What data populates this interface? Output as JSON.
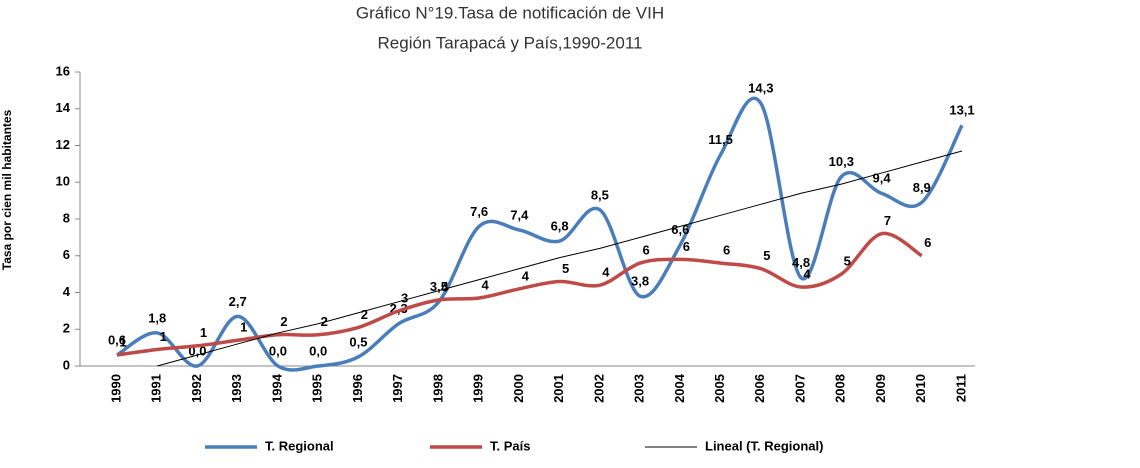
{
  "chart_data": {
    "type": "line",
    "title": [
      "Gráfico  N°19.Tasa de notificación de VIH",
      "Región Tarapacá y País,1990-2011"
    ],
    "y_label": "Tasa por cien mil habitantes",
    "categories": [
      "1990",
      "1991",
      "1992",
      "1993",
      "1994",
      "1995",
      "1996",
      "1997",
      "1998",
      "1999",
      "2000",
      "2001",
      "2002",
      "2003",
      "2004",
      "2005",
      "2006",
      "2007",
      "2008",
      "2009",
      "2010",
      "2011"
    ],
    "ylim": [
      0,
      16
    ],
    "yticks": [
      0,
      2,
      4,
      6,
      8,
      10,
      12,
      14,
      16
    ],
    "series": [
      {
        "name": "T. Regional",
        "color": "#4a7ebb",
        "smooth": true,
        "values": [
          0.6,
          1.8,
          0.0,
          2.7,
          0.0,
          0.0,
          0.5,
          2.3,
          3.5,
          7.6,
          7.4,
          6.8,
          8.5,
          3.8,
          6.6,
          11.5,
          14.3,
          4.8,
          10.3,
          9.4,
          8.9,
          13.1
        ],
        "value_labels": [
          "0,6",
          "1,8",
          "0,0",
          "2,7",
          "0,0",
          "0,0",
          "0,5",
          "2,3",
          "3,5",
          "7,6",
          "7,4",
          "6,8",
          "8,5",
          "3,8",
          "6,6",
          "11,5",
          "14,3",
          "4,8",
          "10,3",
          "9,4",
          "8,9",
          "13,1"
        ]
      },
      {
        "name": "T. País",
        "color": "#be4b48",
        "smooth": true,
        "values": [
          0.6,
          0.9,
          1.1,
          1.4,
          1.7,
          1.7,
          2.1,
          3.0,
          3.6,
          3.7,
          4.2,
          4.6,
          4.4,
          5.6,
          5.8,
          5.6,
          5.3,
          4.3,
          5.0,
          7.2,
          6.0,
          null
        ],
        "value_labels": [
          "1",
          "1",
          "1",
          "1",
          "2",
          "2",
          "2",
          "3",
          "4",
          "4",
          "4",
          "5",
          "4",
          "6",
          "6",
          "6",
          "5",
          "4",
          "5",
          "7",
          "6",
          null
        ]
      },
      {
        "name": "Lineal (T. Regional)",
        "color": "#000000",
        "smooth": false,
        "values": [
          null,
          0.0,
          0.6,
          1.2,
          1.8,
          2.3,
          2.9,
          3.5,
          4.1,
          4.7,
          5.3,
          5.9,
          6.4,
          7.0,
          7.6,
          8.2,
          8.8,
          9.4,
          9.9,
          10.5,
          11.1,
          11.7
        ]
      }
    ]
  }
}
